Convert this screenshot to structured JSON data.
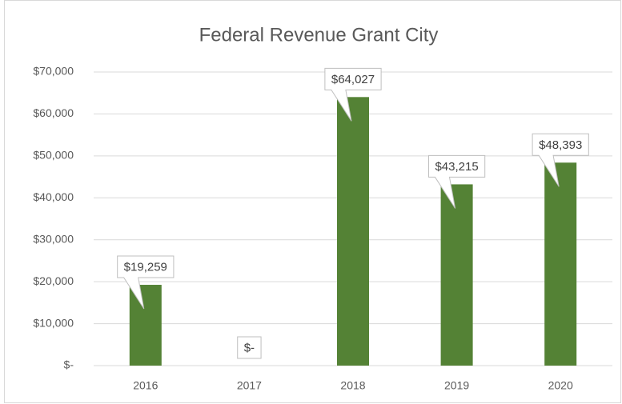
{
  "chart_data": {
    "type": "bar",
    "title": "Federal Revenue Grant City",
    "categories": [
      "2016",
      "2017",
      "2018",
      "2019",
      "2020"
    ],
    "values": [
      19259,
      0,
      64027,
      43215,
      48393
    ],
    "value_labels": [
      "$19,259",
      "$-",
      "$64,027",
      "$43,215",
      "$48,393"
    ],
    "color": "#548235",
    "ylim": [
      0,
      70000
    ],
    "yticks": [
      {
        "value": 0,
        "label": "$-"
      },
      {
        "value": 10000,
        "label": "$10,000"
      },
      {
        "value": 20000,
        "label": "$20,000"
      },
      {
        "value": 30000,
        "label": "$30,000"
      },
      {
        "value": 40000,
        "label": "$40,000"
      },
      {
        "value": 50000,
        "label": "$50,000"
      },
      {
        "value": 60000,
        "label": "$60,000"
      },
      {
        "value": 70000,
        "label": "$70,000"
      }
    ],
    "grid": true
  }
}
